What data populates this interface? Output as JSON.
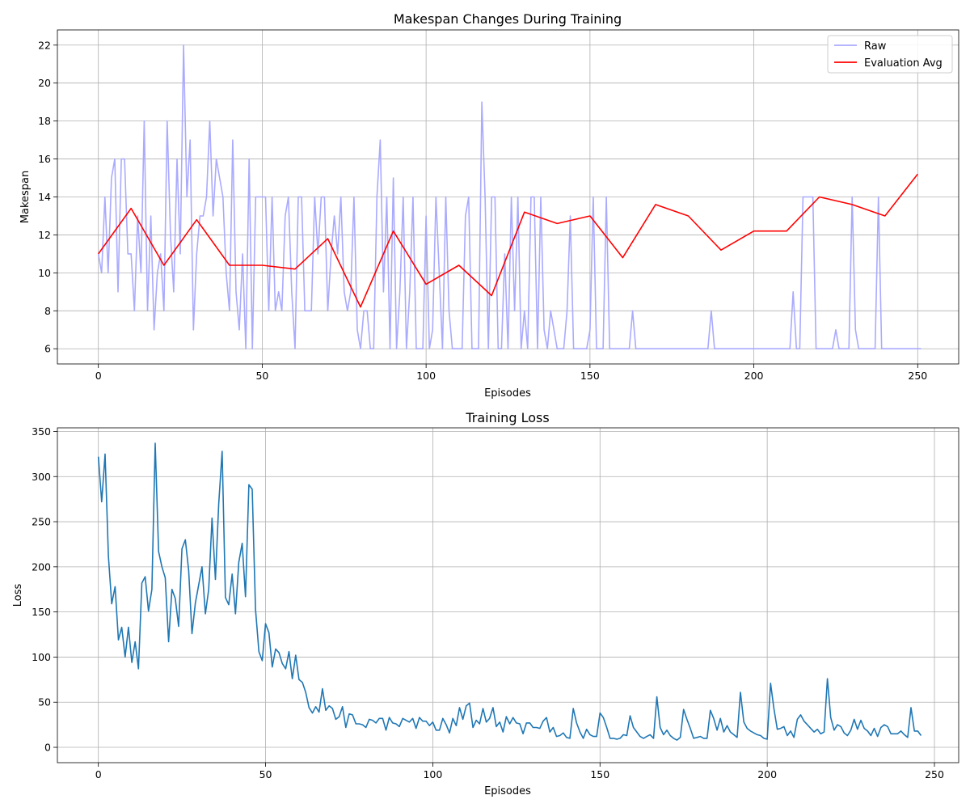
{
  "chart_data": [
    {
      "type": "line",
      "title": "Makespan Changes During Training",
      "xlabel": "Episodes",
      "ylabel": "Makespan",
      "xlim": [
        -12.5,
        262.5
      ],
      "ylim": [
        5.2,
        22.8
      ],
      "xticks": [
        0,
        50,
        100,
        150,
        200,
        250
      ],
      "yticks": [
        6,
        8,
        10,
        12,
        14,
        16,
        18,
        20,
        22
      ],
      "grid": true,
      "legend": "top-right",
      "series": [
        {
          "name": "Raw",
          "color": "#aaaaff",
          "x_start": 0,
          "values": [
            11,
            10,
            14,
            10,
            15,
            16,
            9,
            16,
            16,
            11,
            11,
            8,
            13,
            10,
            18,
            8,
            13,
            7,
            10,
            11,
            8,
            18,
            12,
            9,
            16,
            11,
            22,
            14,
            17,
            7,
            11,
            13,
            13,
            14,
            18,
            13,
            16,
            15,
            14,
            10,
            8,
            17,
            9,
            7,
            11,
            6,
            16,
            6,
            14,
            14,
            14,
            14,
            8,
            14,
            8,
            9,
            8,
            13,
            14,
            9,
            6,
            14,
            14,
            8,
            8,
            8,
            14,
            11,
            14,
            14,
            8,
            11,
            13,
            11,
            14,
            9,
            8,
            9,
            14,
            7,
            6,
            8,
            8,
            6,
            6,
            14,
            17,
            9,
            14,
            6,
            15,
            6,
            9,
            14,
            6,
            9,
            14,
            6,
            6,
            6,
            13,
            6,
            7,
            14,
            10,
            6,
            14,
            8,
            6,
            6,
            6,
            6,
            13,
            14,
            6,
            6,
            6,
            19,
            14,
            6,
            14,
            14,
            6,
            6,
            11,
            6,
            14,
            8,
            14,
            6,
            8,
            6,
            14,
            14,
            6,
            14,
            7,
            6,
            8,
            7,
            6,
            6,
            6,
            8,
            13,
            6,
            6,
            6,
            6,
            6,
            7,
            14,
            6,
            6,
            6,
            14,
            6,
            6,
            6,
            6,
            6,
            6,
            6,
            8,
            6,
            6,
            6,
            6,
            6,
            6,
            6,
            6,
            6,
            6,
            6,
            6,
            6,
            6,
            6,
            6,
            6,
            6,
            6,
            6,
            6,
            6,
            6,
            8,
            6,
            6,
            6,
            6,
            6,
            6,
            6,
            6,
            6,
            6,
            6,
            6,
            6,
            6,
            6,
            6,
            6,
            6,
            6,
            6,
            6,
            6,
            6,
            6,
            9,
            6,
            6,
            14,
            14,
            14,
            14,
            6,
            6,
            6,
            6,
            6,
            6,
            7,
            6,
            6,
            6,
            6,
            14,
            7,
            6,
            6,
            6,
            6,
            6,
            6,
            14,
            6,
            6,
            6,
            6,
            6,
            6,
            6,
            6,
            6,
            6,
            6,
            6,
            6
          ]
        },
        {
          "name": "Evaluation Avg",
          "color": "#ff0000",
          "x": [
            0,
            10,
            20,
            30,
            40,
            50,
            60,
            70,
            80,
            90,
            100,
            110,
            120,
            130,
            140,
            150,
            160,
            170,
            180,
            190,
            200,
            210,
            220,
            230,
            240,
            250
          ],
          "values": [
            11.0,
            13.4,
            10.4,
            12.8,
            10.4,
            10.4,
            10.2,
            11.8,
            8.2,
            12.2,
            9.4,
            10.4,
            8.8,
            13.2,
            12.6,
            13.0,
            10.8,
            13.6,
            13.0,
            11.2,
            12.2,
            12.2,
            14.0,
            13.6,
            13.0,
            15.2
          ]
        }
      ]
    },
    {
      "type": "line",
      "title": "Training Loss",
      "xlabel": "Episodes",
      "ylabel": "Loss",
      "xlim": [
        -12.25,
        257.25
      ],
      "ylim": [
        -17,
        354
      ],
      "xticks": [
        0,
        50,
        100,
        150,
        200,
        250
      ],
      "yticks": [
        0,
        50,
        100,
        150,
        200,
        250,
        300,
        350
      ],
      "grid": true,
      "series": [
        {
          "color": "#1f77b4",
          "x_start": 0,
          "values": [
            322,
            272,
            325,
            212,
            159,
            178,
            119,
            133,
            100,
            133,
            94,
            117,
            87,
            182,
            189,
            151,
            175,
            337,
            217,
            200,
            188,
            117,
            175,
            165,
            134,
            220,
            230,
            196,
            126,
            160,
            180,
            200,
            148,
            175,
            254,
            186,
            270,
            328,
            166,
            158,
            192,
            148,
            205,
            226,
            167,
            291,
            286,
            153,
            106,
            96,
            137,
            127,
            89,
            109,
            105,
            93,
            87,
            106,
            76,
            102,
            75,
            72,
            61,
            44,
            38,
            45,
            39,
            65,
            41,
            46,
            43,
            31,
            34,
            45,
            22,
            37,
            36,
            26,
            26,
            25,
            22,
            31,
            30,
            27,
            32,
            32,
            19,
            33,
            27,
            26,
            23,
            32,
            30,
            28,
            32,
            21,
            33,
            29,
            29,
            24,
            28,
            19,
            19,
            32,
            25,
            16,
            32,
            24,
            44,
            31,
            46,
            49,
            22,
            30,
            26,
            43,
            28,
            32,
            44,
            23,
            28,
            17,
            34,
            26,
            33,
            27,
            26,
            15,
            27,
            27,
            22,
            22,
            21,
            29,
            33,
            17,
            22,
            12,
            13,
            16,
            11,
            10,
            43,
            27,
            17,
            10,
            20,
            14,
            12,
            12,
            38,
            33,
            22,
            10,
            10,
            9,
            10,
            14,
            13,
            35,
            22,
            17,
            12,
            10,
            12,
            14,
            10,
            56,
            22,
            14,
            19,
            13,
            10,
            8,
            11,
            42,
            31,
            21,
            10,
            11,
            12,
            10,
            10,
            41,
            32,
            19,
            32,
            17,
            24,
            17,
            14,
            11,
            61,
            28,
            21,
            18,
            16,
            14,
            13,
            10,
            9,
            71,
            43,
            20,
            21,
            23,
            13,
            18,
            11,
            31,
            36,
            29,
            25,
            21,
            17,
            20,
            15,
            17,
            76,
            33,
            19,
            25,
            23,
            16,
            13,
            19,
            31,
            20,
            30,
            21,
            18,
            13,
            21,
            12,
            22,
            25,
            23,
            15,
            15,
            15,
            18,
            14,
            11,
            44,
            18,
            18,
            13
          ]
        }
      ]
    }
  ]
}
